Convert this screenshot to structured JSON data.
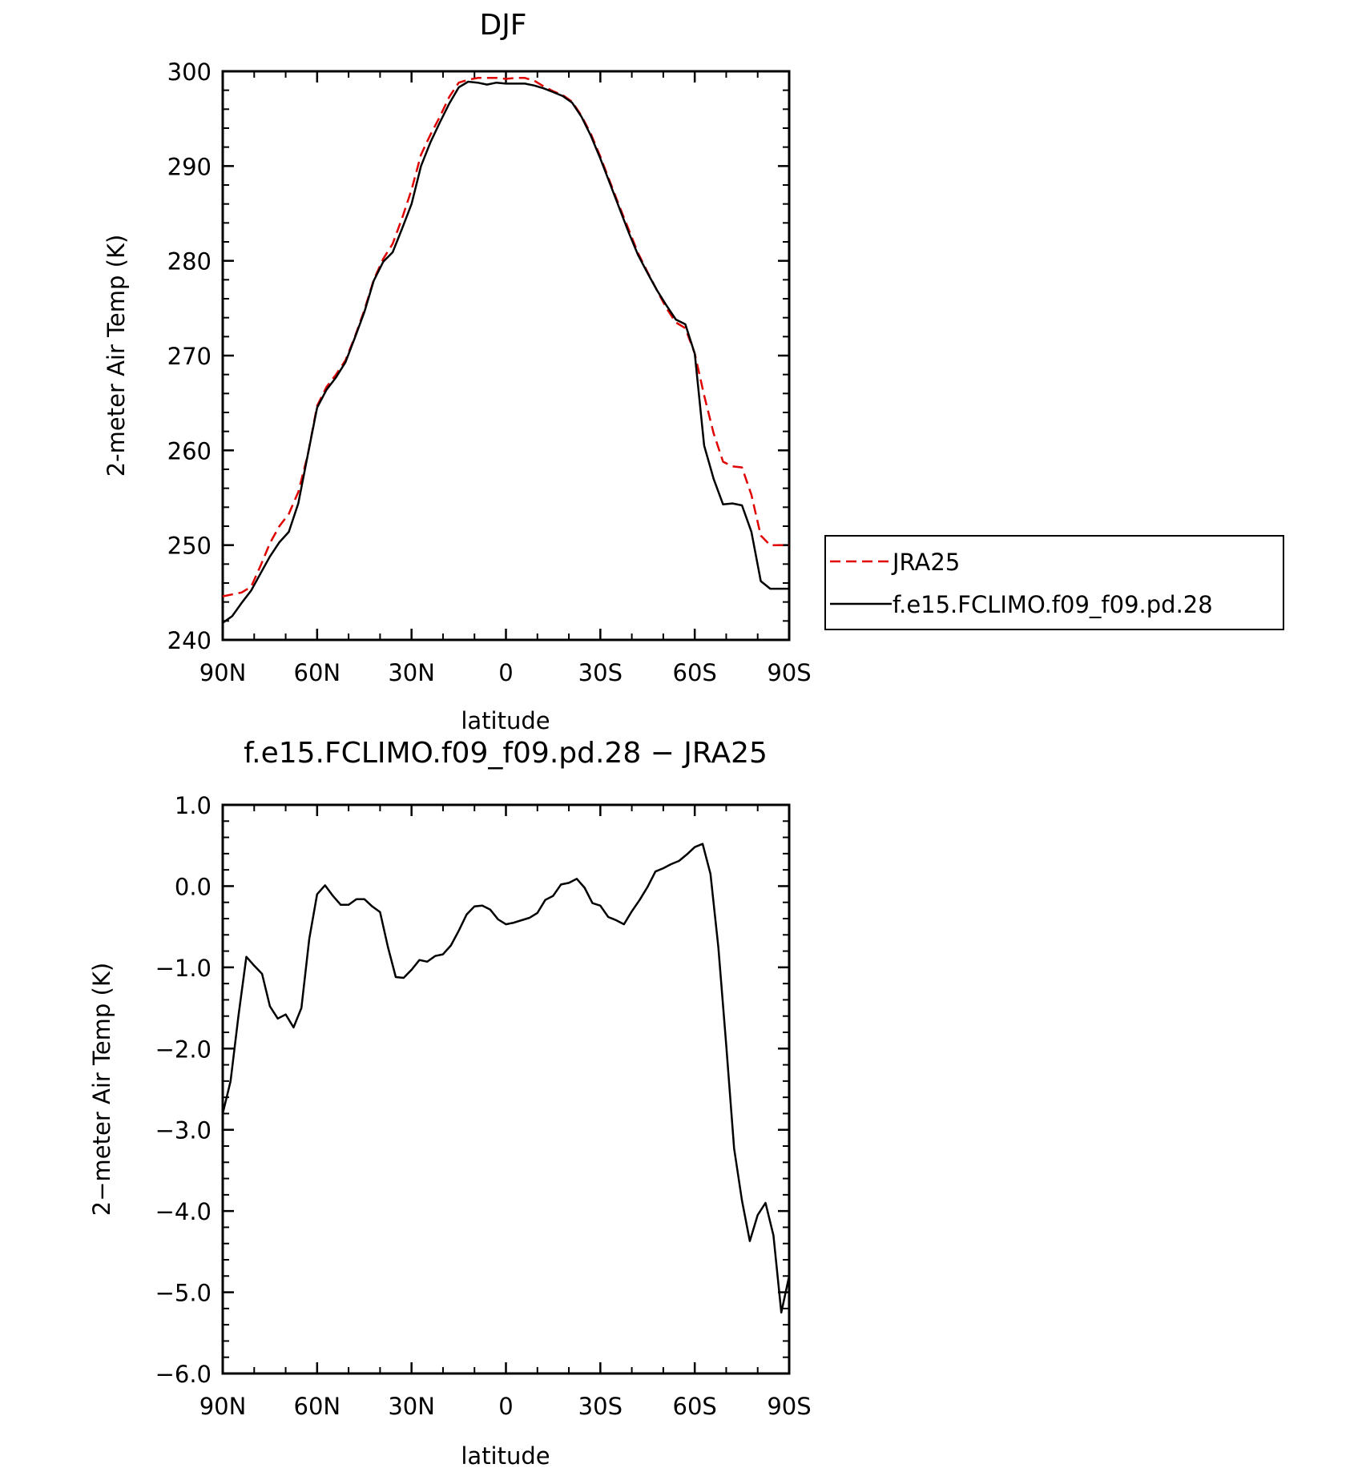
{
  "chart_data": [
    {
      "type": "line",
      "title": "DJF",
      "xlabel": "latitude",
      "ylabel": "2-meter Air Temp (K)",
      "xlim": [
        90,
        -90
      ],
      "ylim": [
        240,
        300
      ],
      "xticks": [
        90,
        60,
        30,
        0,
        -30,
        -60,
        -90
      ],
      "xtick_labels": [
        "90N",
        "60N",
        "30N",
        "0",
        "30S",
        "60S",
        "90S"
      ],
      "yticks": [
        240,
        250,
        260,
        270,
        280,
        290,
        300
      ],
      "ytick_labels": [
        "240",
        "250",
        "260",
        "270",
        "280",
        "290",
        "300"
      ],
      "grid": false,
      "legend": {
        "placement": "right",
        "entries": [
          "JRA25",
          "f.e15.FCLIMO.f09_f09.pd.28"
        ]
      },
      "series": [
        {
          "name": "JRA25",
          "color": "#e00000",
          "dash": "dashed",
          "x": [
            90,
            87,
            84,
            81,
            78,
            75,
            72,
            69,
            66,
            63,
            60,
            57,
            54,
            51,
            48,
            45,
            42,
            39,
            36,
            33,
            30,
            27,
            24,
            21,
            18,
            15,
            12,
            9,
            6,
            3,
            0,
            -3,
            -6,
            -9,
            -12,
            -15,
            -18,
            -21,
            -24,
            -27,
            -30,
            -33,
            -36,
            -39,
            -42,
            -45,
            -48,
            -51,
            -54,
            -57,
            -60,
            -63,
            -66,
            -69,
            -72,
            -75,
            -78,
            -81,
            -84,
            -87,
            -90
          ],
          "y": [
            244.6,
            244.8,
            245.0,
            245.6,
            247.8,
            250.2,
            252.0,
            253.3,
            255.6,
            259.5,
            264.7,
            266.7,
            268.0,
            269.5,
            272.0,
            274.8,
            278.0,
            280.2,
            281.8,
            284.5,
            287.5,
            291.2,
            293.3,
            295.2,
            297.3,
            298.8,
            299.1,
            299.3,
            299.3,
            299.3,
            299.2,
            299.3,
            299.3,
            299.0,
            298.4,
            297.9,
            297.5,
            296.8,
            295.3,
            293.4,
            291.0,
            288.4,
            285.8,
            283.3,
            280.8,
            278.8,
            276.9,
            275.0,
            273.5,
            272.9,
            270.2,
            265.8,
            261.8,
            258.8,
            258.3,
            258.2,
            255.3,
            251.0,
            250.0,
            250.0,
            250.0
          ]
        },
        {
          "name": "f.e15.FCLIMO.f09_f09.pd.28",
          "color": "#000000",
          "dash": "solid",
          "x": [
            90,
            87,
            84,
            81,
            78,
            75,
            72,
            69,
            66,
            63,
            60,
            57,
            54,
            51,
            48,
            45,
            42,
            39,
            36,
            33,
            30,
            27,
            24,
            21,
            18,
            15,
            12,
            9,
            6,
            3,
            0,
            -3,
            -6,
            -9,
            -12,
            -15,
            -18,
            -21,
            -24,
            -27,
            -30,
            -33,
            -36,
            -39,
            -42,
            -45,
            -48,
            -51,
            -54,
            -57,
            -60,
            -63,
            -66,
            -69,
            -72,
            -75,
            -78,
            -81,
            -84,
            -87,
            -90
          ],
          "y": [
            241.8,
            242.5,
            243.9,
            245.2,
            247.0,
            248.8,
            250.3,
            251.4,
            254.4,
            259.5,
            264.5,
            266.4,
            267.7,
            269.3,
            271.9,
            274.6,
            277.9,
            279.9,
            280.9,
            283.4,
            286.0,
            290.0,
            292.5,
            294.6,
            296.6,
            298.3,
            298.9,
            298.8,
            298.6,
            298.8,
            298.7,
            298.7,
            298.7,
            298.5,
            298.2,
            297.8,
            297.4,
            296.7,
            295.2,
            293.2,
            290.8,
            288.2,
            285.6,
            283.0,
            280.6,
            278.7,
            276.9,
            275.3,
            273.8,
            273.3,
            270.2,
            260.5,
            257.0,
            254.3,
            254.4,
            254.2,
            251.4,
            246.2,
            245.4,
            245.4,
            245.4
          ]
        }
      ]
    },
    {
      "type": "line",
      "title": "f.e15.FCLIMO.f09_f09.pd.28 − JRA25",
      "xlabel": "latitude",
      "ylabel": "2−meter Air Temp (K)",
      "xlim": [
        90,
        -90
      ],
      "ylim": [
        -6.0,
        1.0
      ],
      "xticks": [
        90,
        60,
        30,
        0,
        -30,
        -60,
        -90
      ],
      "xtick_labels": [
        "90N",
        "60N",
        "30N",
        "0",
        "30S",
        "60S",
        "90S"
      ],
      "yticks": [
        1.0,
        0.0,
        -1.0,
        -2.0,
        -3.0,
        -4.0,
        -5.0,
        -6.0
      ],
      "ytick_labels": [
        "1.0",
        "0.0",
        "−1.0",
        "−2.0",
        "−3.0",
        "−4.0",
        "−5.0",
        "−6.0"
      ],
      "grid": false,
      "series": [
        {
          "color": "#000000",
          "dash": "solid",
          "x": [
            90,
            87.5,
            85,
            82.5,
            80,
            77.5,
            75,
            72.5,
            70,
            67.5,
            65,
            62.5,
            60,
            57.5,
            55,
            52.5,
            50,
            47.5,
            45,
            42.5,
            40,
            37.5,
            35,
            32.5,
            30,
            27.5,
            25,
            22.5,
            20,
            17.5,
            15,
            12.5,
            10,
            7.5,
            5,
            2.5,
            0,
            -2.5,
            -5,
            -7.5,
            -10,
            -12.5,
            -15,
            -17.5,
            -20,
            -22.5,
            -25,
            -27.5,
            -30,
            -32.5,
            -35,
            -37.5,
            -40,
            -42.5,
            -45,
            -47.5,
            -50,
            -52.5,
            -55,
            -57.5,
            -60,
            -62.5,
            -65,
            -67.5,
            -70,
            -72.5,
            -75,
            -77.5,
            -80,
            -82.5,
            -85,
            -87.5,
            -90
          ],
          "y": [
            -2.8,
            -2.4,
            -1.6,
            -0.87,
            -0.98,
            -1.08,
            -1.48,
            -1.63,
            -1.58,
            -1.74,
            -1.5,
            -0.65,
            -0.1,
            0.01,
            -0.12,
            -0.23,
            -0.23,
            -0.16,
            -0.16,
            -0.25,
            -0.32,
            -0.75,
            -1.12,
            -1.13,
            -1.03,
            -0.91,
            -0.93,
            -0.86,
            -0.84,
            -0.73,
            -0.55,
            -0.35,
            -0.25,
            -0.24,
            -0.29,
            -0.41,
            -0.47,
            -0.45,
            -0.42,
            -0.39,
            -0.33,
            -0.17,
            -0.12,
            0.02,
            0.04,
            0.09,
            -0.02,
            -0.21,
            -0.24,
            -0.38,
            -0.42,
            -0.47,
            -0.31,
            -0.17,
            -0.01,
            0.18,
            0.22,
            0.27,
            0.31,
            0.39,
            0.48,
            0.52,
            0.15,
            -0.75,
            -1.95,
            -3.23,
            -3.87,
            -4.37,
            -4.05,
            -3.9,
            -4.3,
            -5.25,
            -4.8
          ]
        }
      ]
    }
  ]
}
